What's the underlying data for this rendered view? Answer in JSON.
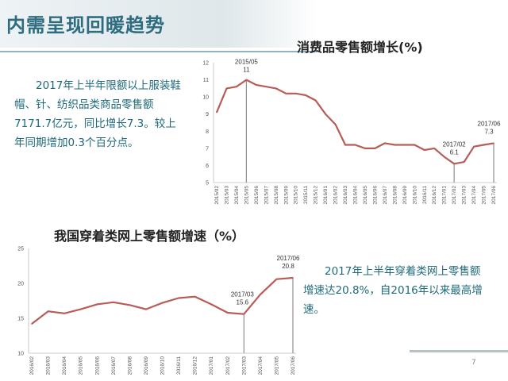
{
  "page_title": "内需呈现回暖趋势",
  "note1": "2017年上半年限额以上服装鞋帽、针、纺织品类商品零售额7171.7亿元，同比增长7.3。较上年同期增加0.3个百分点。",
  "note2": "2017年上半年穿着类网上零售额增速达20.8%，自2016年以来最高增速。",
  "page_number": "7",
  "colors": {
    "line": "#b85c58",
    "title": "#2e6c80",
    "text": "#1e6a7a",
    "marker": "#8f8f8f"
  },
  "chart_data": [
    {
      "type": "line",
      "title": "消费品零售额增长(%)",
      "xlabel": "",
      "ylabel": "",
      "ylim": [
        5,
        12
      ],
      "yticks": [
        "5",
        "6",
        "7",
        "8",
        "9",
        "10",
        "11",
        "12"
      ],
      "categories": [
        "2015/02",
        "2015/03",
        "2015/04",
        "2015/05",
        "2015/06",
        "2015/07",
        "2015/08",
        "2015/09",
        "2015/10",
        "2015/11",
        "2015/12",
        "2016/01",
        "2016/02",
        "2016/03",
        "2016/04",
        "2016/05",
        "2016/06",
        "2016/07",
        "2016/08",
        "2016/09",
        "2016/10",
        "2016/11",
        "2016/12",
        "2017/01",
        "2017/02",
        "2017/03",
        "2017/04",
        "2017/05",
        "2017/06"
      ],
      "values": [
        9.1,
        10.5,
        10.6,
        11.0,
        10.7,
        10.6,
        10.5,
        10.2,
        10.2,
        10.1,
        9.8,
        9.0,
        8.4,
        7.2,
        7.2,
        7.0,
        7.0,
        7.3,
        7.2,
        7.2,
        7.2,
        6.9,
        7.0,
        6.5,
        6.1,
        6.2,
        7.1,
        7.2,
        7.3
      ],
      "annotations": [
        {
          "category": "2015/05",
          "label": "2015/05",
          "value_label": "11"
        },
        {
          "category": "2017/02",
          "label": "2017/02",
          "value_label": "6.1"
        },
        {
          "category": "2017/06",
          "label": "2017/06",
          "value_label": "7.3"
        }
      ],
      "grid": false
    },
    {
      "type": "line",
      "title": "我国穿着类网上零售额增速（%）",
      "xlabel": "",
      "ylabel": "",
      "ylim": [
        10,
        25
      ],
      "yticks": [
        "10",
        "15",
        "20",
        "25"
      ],
      "categories": [
        "2016/02",
        "2016/03",
        "2016/04",
        "2016/05",
        "2016/06",
        "2016/07",
        "2016/08",
        "2016/09",
        "2016/10",
        "2016/11",
        "2016/12",
        "2017/01",
        "2017/02",
        "2017/03",
        "2017/04",
        "2017/05",
        "2017/06"
      ],
      "values": [
        14.2,
        16.0,
        15.7,
        16.3,
        17.0,
        17.3,
        16.9,
        16.3,
        17.2,
        17.9,
        18.1,
        17.0,
        15.8,
        15.6,
        18.4,
        20.6,
        20.8
      ],
      "annotations": [
        {
          "category": "2017/03",
          "label": "2017/03",
          "value_label": "15.6"
        },
        {
          "category": "2017/06",
          "label": "2017/06",
          "value_label": "20.8"
        }
      ],
      "grid": false
    }
  ]
}
